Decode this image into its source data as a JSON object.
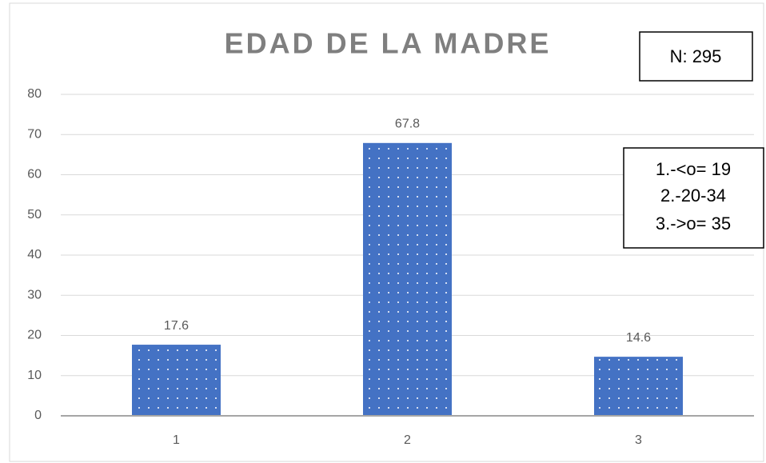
{
  "chart_data": {
    "type": "bar",
    "title": "EDAD DE LA MADRE",
    "categories": [
      "1",
      "2",
      "3"
    ],
    "values": [
      17.6,
      67.8,
      14.6
    ],
    "color": "#4472c4",
    "ylim": [
      0,
      80
    ],
    "yticks": [
      0,
      10,
      20,
      30,
      40,
      50,
      60,
      70,
      80
    ],
    "grid": true,
    "annotations": [
      "N: 295",
      "1.-<o= 19",
      "2.-20-34",
      "3.->o= 35"
    ]
  }
}
